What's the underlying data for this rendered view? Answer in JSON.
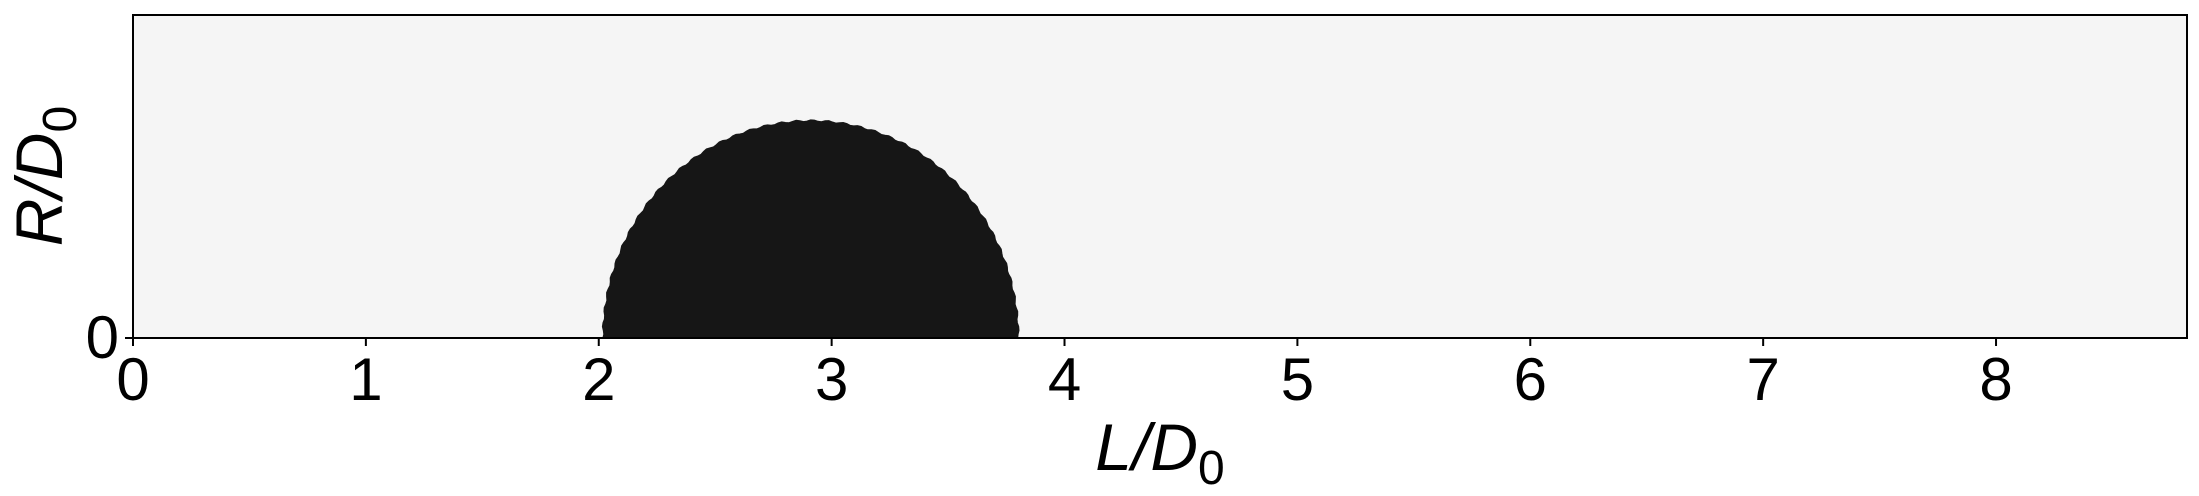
{
  "chart_data": {
    "type": "area",
    "title": "",
    "xlabel": {
      "main": "L/D",
      "sub": "0"
    },
    "ylabel": {
      "main": "R/D",
      "sub": "0"
    },
    "xlim": [
      0,
      8.82
    ],
    "ylim": [
      0,
      0.7
    ],
    "xticks": [
      0,
      1,
      2,
      3,
      4,
      5,
      6,
      7,
      8
    ],
    "xtick_labels": [
      "0",
      "1",
      "2",
      "3",
      "4",
      "5",
      "6",
      "7",
      "8"
    ],
    "yticks": [
      0
    ],
    "ytick_labels": [
      "0"
    ],
    "grid": false,
    "legend": "none",
    "colors": {
      "background": "#f5f5f5",
      "fill": "#161616",
      "frame": "#000000"
    },
    "series": [
      {
        "name": "droplet",
        "shape": "half-ellipse",
        "center_x": 2.91,
        "half_width": 0.89,
        "height": 0.47
      }
    ]
  }
}
